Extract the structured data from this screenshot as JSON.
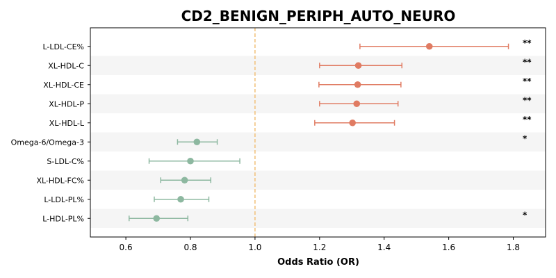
{
  "chart_data": {
    "type": "scatter",
    "title": "CD2_BENIGN_PERIPH_AUTO_NEURO",
    "xlabel": "Odds Ratio (OR)",
    "ylabel": "",
    "xlim": [
      0.49,
      1.9
    ],
    "xticks": [
      "0.6",
      "0.8",
      "1.0",
      "1.2",
      "1.4",
      "1.6",
      "1.8"
    ],
    "reference_line": 1.0,
    "grid": false,
    "row_banding": true,
    "colors": {
      "risk": "#E07B62",
      "protective": "#8DB8A0",
      "reference": "#F2C078",
      "band": "#F5F5F5"
    },
    "series": [
      {
        "label": "L-LDL-CE%",
        "or": 1.54,
        "ci_low": 1.325,
        "ci_high": 1.785,
        "direction": "risk",
        "sig": "**"
      },
      {
        "label": "XL-HDL-C",
        "or": 1.32,
        "ci_low": 1.2,
        "ci_high": 1.455,
        "direction": "risk",
        "sig": "**"
      },
      {
        "label": "XL-HDL-CE",
        "or": 1.318,
        "ci_low": 1.198,
        "ci_high": 1.452,
        "direction": "risk",
        "sig": "**"
      },
      {
        "label": "XL-HDL-P",
        "or": 1.315,
        "ci_low": 1.2,
        "ci_high": 1.443,
        "direction": "risk",
        "sig": "**"
      },
      {
        "label": "XL-HDL-L",
        "or": 1.302,
        "ci_low": 1.185,
        "ci_high": 1.432,
        "direction": "risk",
        "sig": "**"
      },
      {
        "label": "Omega-6/Omega-3",
        "or": 0.82,
        "ci_low": 0.76,
        "ci_high": 0.883,
        "direction": "protective",
        "sig": "*"
      },
      {
        "label": "S-LDL-C%",
        "or": 0.8,
        "ci_low": 0.672,
        "ci_high": 0.953,
        "direction": "protective",
        "sig": ""
      },
      {
        "label": "XL-HDL-FC%",
        "or": 0.782,
        "ci_low": 0.708,
        "ci_high": 0.863,
        "direction": "protective",
        "sig": ""
      },
      {
        "label": "L-LDL-PL%",
        "or": 0.77,
        "ci_low": 0.688,
        "ci_high": 0.857,
        "direction": "protective",
        "sig": ""
      },
      {
        "label": "L-HDL-PL%",
        "or": 0.695,
        "ci_low": 0.61,
        "ci_high": 0.792,
        "direction": "protective",
        "sig": "*"
      }
    ]
  }
}
